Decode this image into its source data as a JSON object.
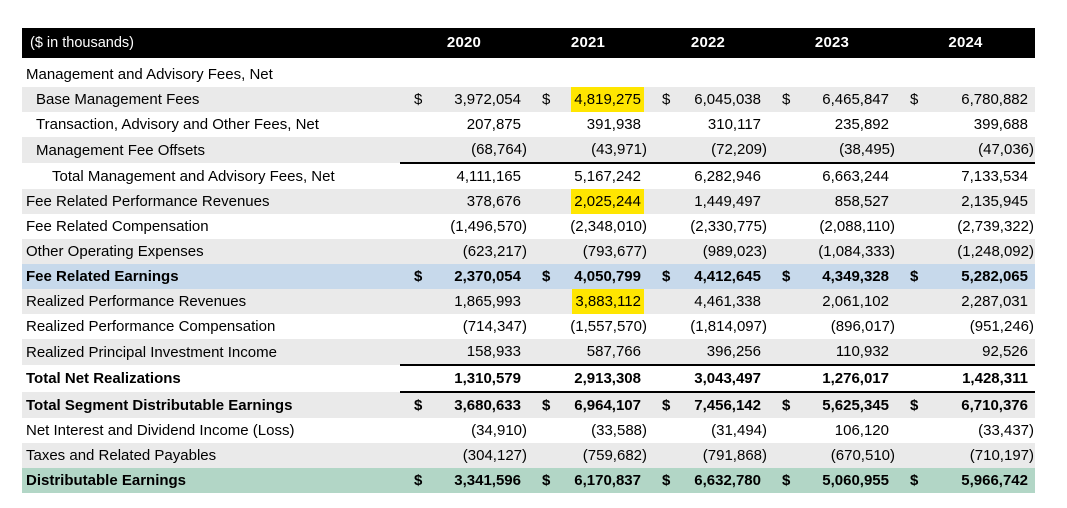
{
  "table": {
    "unit_label": "($ in thousands)",
    "currency_symbol": "$",
    "years": [
      "2020",
      "2021",
      "2022",
      "2023",
      "2024"
    ],
    "rows": [
      {
        "label": "Management and Advisory Fees, Net",
        "indent": 0,
        "bg": "none",
        "bold": false,
        "dollar": false,
        "border": "",
        "values": null,
        "highlights": []
      },
      {
        "label": "Base Management Fees",
        "indent": 1,
        "bg": "stripe",
        "bold": false,
        "dollar": true,
        "border": "",
        "values": [
          "3,972,054",
          "4,819,275",
          "6,045,038",
          "6,465,847",
          "6,780,882"
        ],
        "highlights": [
          1
        ]
      },
      {
        "label": "Transaction, Advisory and Other Fees, Net",
        "indent": 1,
        "bg": "none",
        "bold": false,
        "dollar": false,
        "border": "",
        "values": [
          "207,875",
          "391,938",
          "310,117",
          "235,892",
          "399,688"
        ],
        "highlights": []
      },
      {
        "label": "Management Fee Offsets",
        "indent": 1,
        "bg": "stripe",
        "bold": false,
        "dollar": false,
        "border": "",
        "values": [
          "(68,764)",
          "(43,971)",
          "(72,209)",
          "(38,495)",
          "(47,036)"
        ],
        "highlights": []
      },
      {
        "label": "Total Management and Advisory Fees, Net",
        "indent": 2,
        "bg": "none",
        "bold": false,
        "dollar": false,
        "border": "top",
        "values": [
          "4,111,165",
          "5,167,242",
          "6,282,946",
          "6,663,244",
          "7,133,534"
        ],
        "highlights": []
      },
      {
        "label": "Fee Related Performance Revenues",
        "indent": 0,
        "bg": "stripe",
        "bold": false,
        "dollar": false,
        "border": "",
        "values": [
          "378,676",
          "2,025,244",
          "1,449,497",
          "858,527",
          "2,135,945"
        ],
        "highlights": [
          1
        ]
      },
      {
        "label": "Fee Related Compensation",
        "indent": 0,
        "bg": "none",
        "bold": false,
        "dollar": false,
        "border": "",
        "values": [
          "(1,496,570)",
          "(2,348,010)",
          "(2,330,775)",
          "(2,088,110)",
          "(2,739,322)"
        ],
        "highlights": []
      },
      {
        "label": "Other Operating Expenses",
        "indent": 0,
        "bg": "stripe",
        "bold": false,
        "dollar": false,
        "border": "",
        "values": [
          "(623,217)",
          "(793,677)",
          "(989,023)",
          "(1,084,333)",
          "(1,248,092)"
        ],
        "highlights": []
      },
      {
        "label": "Fee Related Earnings",
        "indent": 0,
        "bg": "blue",
        "bold": true,
        "dollar": true,
        "border": "",
        "values": [
          "2,370,054",
          "4,050,799",
          "4,412,645",
          "4,349,328",
          "5,282,065"
        ],
        "highlights": []
      },
      {
        "label": "Realized Performance Revenues",
        "indent": 0,
        "bg": "stripe",
        "bold": false,
        "dollar": false,
        "border": "",
        "values": [
          "1,865,993",
          "3,883,112",
          "4,461,338",
          "2,061,102",
          "2,287,031"
        ],
        "highlights": [
          1
        ]
      },
      {
        "label": "Realized Performance Compensation",
        "indent": 0,
        "bg": "none",
        "bold": false,
        "dollar": false,
        "border": "",
        "values": [
          "(714,347)",
          "(1,557,570)",
          "(1,814,097)",
          "(896,017)",
          "(951,246)"
        ],
        "highlights": []
      },
      {
        "label": "Realized Principal Investment Income",
        "indent": 0,
        "bg": "stripe",
        "bold": false,
        "dollar": false,
        "border": "",
        "values": [
          "158,933",
          "587,766",
          "396,256",
          "110,932",
          "92,526"
        ],
        "highlights": []
      },
      {
        "label": "Total Net Realizations",
        "indent": 0,
        "bg": "none",
        "bold": true,
        "dollar": false,
        "border": "topbottom",
        "values": [
          "1,310,579",
          "2,913,308",
          "3,043,497",
          "1,276,017",
          "1,428,311"
        ],
        "highlights": []
      },
      {
        "label": "Total Segment Distributable Earnings",
        "indent": 0,
        "bg": "stripe",
        "bold": true,
        "dollar": true,
        "border": "",
        "values": [
          "3,680,633",
          "6,964,107",
          "7,456,142",
          "5,625,345",
          "6,710,376"
        ],
        "highlights": []
      },
      {
        "label": "Net Interest and Dividend Income (Loss)",
        "indent": 0,
        "bg": "none",
        "bold": false,
        "dollar": false,
        "border": "",
        "values": [
          "(34,910)",
          "(33,588)",
          "(31,494)",
          "106,120",
          "(33,437)"
        ],
        "highlights": []
      },
      {
        "label": "Taxes and Related Payables",
        "indent": 0,
        "bg": "stripe",
        "bold": false,
        "dollar": false,
        "border": "",
        "values": [
          "(304,127)",
          "(759,682)",
          "(791,868)",
          "(670,510)",
          "(710,197)"
        ],
        "highlights": []
      },
      {
        "label": "Distributable Earnings",
        "indent": 0,
        "bg": "green",
        "bold": true,
        "dollar": true,
        "border": "",
        "values": [
          "3,341,596",
          "6,170,837",
          "6,632,780",
          "5,060,955",
          "5,966,742"
        ],
        "highlights": []
      }
    ]
  },
  "colors": {
    "header_bg": "#000000",
    "header_text": "#ffffff",
    "stripe": "#eaeaea",
    "blue_row": "#c7d9eb",
    "green_row": "#b2d6c6",
    "highlight_yellow": "#ffe600"
  }
}
